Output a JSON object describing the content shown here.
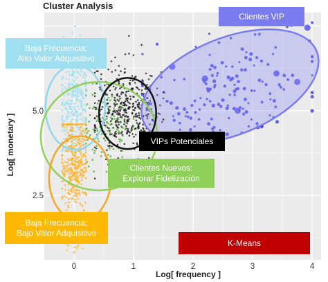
{
  "chart_data": {
    "type": "scatter",
    "title": "Cluster Analysis",
    "xlabel": "Log[ frequency ]",
    "ylabel": "Log[ monetary ]",
    "xlim": [
      -0.5,
      4.15
    ],
    "ylim": [
      0.6,
      7.9
    ],
    "x_ticks": [
      0,
      1,
      2,
      3,
      4
    ],
    "y_ticks": [
      2.5,
      5.0
    ],
    "grid": true,
    "background": "#ebebeb",
    "clusters": [
      {
        "id": "blue",
        "color": "#3c3ce6",
        "cx": 2.55,
        "cy": 5.6,
        "sx": 0.75,
        "sy": 0.9,
        "n": 170,
        "xmin": 1.15,
        "xmax": 4.0,
        "ymin": 4.2,
        "ymax": 7.6
      },
      {
        "id": "black",
        "color": "#111111",
        "cx": 0.85,
        "cy": 5.0,
        "sx": 0.28,
        "sy": 0.7,
        "n": 420,
        "xmin": 0.35,
        "xmax": 1.5,
        "ymin": 3.0,
        "ymax": 7.5
      },
      {
        "id": "green",
        "color": "#4caf2a",
        "cx": 0.55,
        "cy": 4.5,
        "sx": 0.25,
        "sy": 0.6,
        "n": 120,
        "xmin": 0.2,
        "xmax": 1.0,
        "ymin": 3.2,
        "ymax": 5.8
      },
      {
        "id": "lightblue",
        "color": "#9edff2",
        "cx": 0.0,
        "cy": 5.4,
        "sx": 0.12,
        "sy": 0.8,
        "n": 380,
        "xmin": -0.2,
        "xmax": 0.2,
        "ymin": 3.8,
        "ymax": 7.6
      },
      {
        "id": "orange",
        "color": "#ffb22a",
        "cx": 0.0,
        "cy": 3.4,
        "sx": 0.12,
        "sy": 0.75,
        "n": 420,
        "xmin": -0.2,
        "xmax": 0.2,
        "ymin": 1.0,
        "ymax": 4.6
      }
    ],
    "ellipses": [
      {
        "id": "blue",
        "fill": "#8c8cf5",
        "stroke": "#7b7bf0",
        "cx": 2.62,
        "cy": 5.72,
        "rx": 1.57,
        "ry": 1.43,
        "angle": -22
      },
      {
        "id": "lightblue",
        "fill": "none",
        "stroke": "#8fd6ee",
        "cx": 0.02,
        "cy": 5.1,
        "rx": 0.5,
        "ry": 1.25,
        "angle": 0
      },
      {
        "id": "green",
        "fill": "none",
        "stroke": "#8fd05a",
        "cx": 0.42,
        "cy": 4.25,
        "rx": 0.98,
        "ry": 1.6,
        "angle": 0
      },
      {
        "id": "black",
        "fill": "none",
        "stroke": "#111111",
        "cx": 0.9,
        "cy": 4.92,
        "rx": 0.48,
        "ry": 1.05,
        "angle": 0
      },
      {
        "id": "orange",
        "fill": "none",
        "stroke": "#f5a623",
        "cx": 0.1,
        "cy": 3.0,
        "rx": 0.52,
        "ry": 1.25,
        "angle": 0
      }
    ],
    "large_points": [
      {
        "x": 3.92,
        "y": 7.45
      },
      {
        "x": 3.4,
        "y": 6.1
      },
      {
        "x": 2.2,
        "y": 5.95
      },
      {
        "x": 2.75,
        "y": 5.0
      },
      {
        "x": 3.75,
        "y": 5.85
      },
      {
        "x": 1.65,
        "y": 6.3
      }
    ],
    "annotations": [
      {
        "text": "Clientes VIP",
        "box": "#7b7bf0",
        "color": "#ffffff"
      },
      {
        "text": "Baja Frecuencia;\nAlto Valor Adquisitivo",
        "box": "#9fdff0",
        "color": "#ffffff"
      },
      {
        "text": "VIPs Potenciales",
        "box": "#000000",
        "color": "#ffffff"
      },
      {
        "text": "Clientes Nuevos:\nExplorar Fidelización",
        "box": "#8fd05a",
        "color": "#ffffff"
      },
      {
        "text": "Baja Frecuencia;\nBajo Valor Adquisitivo",
        "box": "#ffb900",
        "color": "#ffffff"
      },
      {
        "text": "K-Means",
        "box": "#c00000",
        "color": "#ffffff"
      }
    ]
  }
}
